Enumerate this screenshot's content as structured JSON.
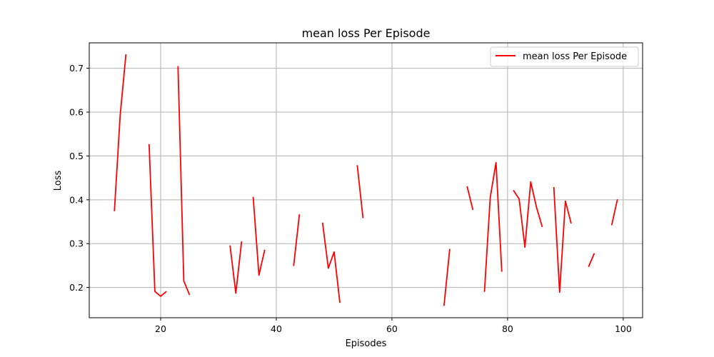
{
  "chart_data": {
    "type": "line",
    "title": "mean loss Per Episode",
    "xlabel": "Episodes",
    "ylabel": "Loss",
    "xlim": [
      7.65,
      103.35
    ],
    "ylim": [
      0.131,
      0.758
    ],
    "xticks": [
      20,
      40,
      60,
      80,
      100
    ],
    "yticks": [
      0.2,
      0.3,
      0.4,
      0.5,
      0.6,
      0.7
    ],
    "grid": true,
    "legend_position": "top-right",
    "series": [
      {
        "name": "mean loss Per Episode",
        "color": "#ff0000",
        "segments": [
          [
            [
              12,
              0.374
            ],
            [
              13,
              0.593
            ],
            [
              14,
              0.732
            ]
          ],
          [
            [
              18,
              0.527
            ],
            [
              19,
              0.191
            ],
            [
              20,
              0.18
            ],
            [
              21,
              0.191
            ]
          ],
          [
            [
              23,
              0.705
            ],
            [
              24,
              0.215
            ],
            [
              25,
              0.183
            ]
          ],
          [
            [
              32,
              0.296
            ],
            [
              33,
              0.187
            ],
            [
              34,
              0.305
            ]
          ],
          [
            [
              36,
              0.407
            ],
            [
              37,
              0.228
            ],
            [
              38,
              0.286
            ]
          ],
          [
            [
              43,
              0.249
            ],
            [
              44,
              0.367
            ]
          ],
          [
            [
              48,
              0.348
            ],
            [
              49,
              0.244
            ],
            [
              50,
              0.281
            ],
            [
              51,
              0.165
            ]
          ],
          [
            [
              54,
              0.479
            ],
            [
              55,
              0.358
            ]
          ],
          [
            [
              69,
              0.158
            ],
            [
              70,
              0.288
            ]
          ],
          [
            [
              73,
              0.431
            ],
            [
              74,
              0.377
            ]
          ],
          [
            [
              76,
              0.19
            ],
            [
              77,
              0.405
            ],
            [
              78,
              0.485
            ],
            [
              79,
              0.236
            ]
          ],
          [
            [
              81,
              0.422
            ],
            [
              82,
              0.402
            ],
            [
              83,
              0.292
            ],
            [
              84,
              0.441
            ],
            [
              85,
              0.383
            ],
            [
              86,
              0.338
            ]
          ],
          [
            [
              88,
              0.429
            ],
            [
              89,
              0.189
            ],
            [
              90,
              0.397
            ],
            [
              91,
              0.346
            ]
          ],
          [
            [
              94,
              0.247
            ],
            [
              95,
              0.278
            ]
          ],
          [
            [
              98,
              0.342
            ],
            [
              99,
              0.401
            ]
          ]
        ]
      }
    ]
  }
}
